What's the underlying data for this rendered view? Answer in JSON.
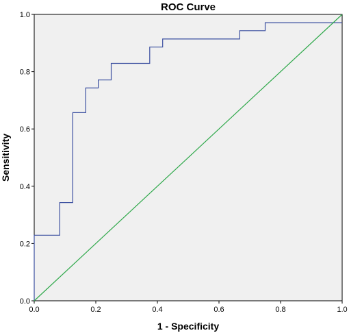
{
  "chart_data": {
    "type": "line",
    "title": "ROC Curve",
    "xlabel": "1 - Specificity",
    "ylabel": "Sensitivity",
    "xlim": [
      0,
      1
    ],
    "ylim": [
      0,
      1
    ],
    "x_ticks": [
      "0.0",
      "0.2",
      "0.4",
      "0.6",
      "0.8",
      "1.0"
    ],
    "y_ticks": [
      "0.0",
      "0.2",
      "0.4",
      "0.6",
      "0.8",
      "1.0"
    ],
    "grid": false,
    "plot_background": "#f0f0f0",
    "series": [
      {
        "color": "#3b4fa0",
        "step": true,
        "x": [
          0.0,
          0.0,
          0.083,
          0.083,
          0.125,
          0.125,
          0.167,
          0.167,
          0.208,
          0.208,
          0.25,
          0.25,
          0.375,
          0.375,
          0.417,
          0.417,
          0.667,
          0.667,
          0.75,
          0.75,
          1.0
        ],
        "y": [
          0.0,
          0.229,
          0.229,
          0.343,
          0.343,
          0.657,
          0.657,
          0.743,
          0.743,
          0.771,
          0.771,
          0.829,
          0.829,
          0.886,
          0.886,
          0.914,
          0.914,
          0.943,
          0.943,
          0.971,
          0.971
        ]
      },
      {
        "color": "#2ea84a",
        "x": [
          0.0,
          1.0
        ],
        "y": [
          0.0,
          1.0
        ]
      }
    ]
  }
}
